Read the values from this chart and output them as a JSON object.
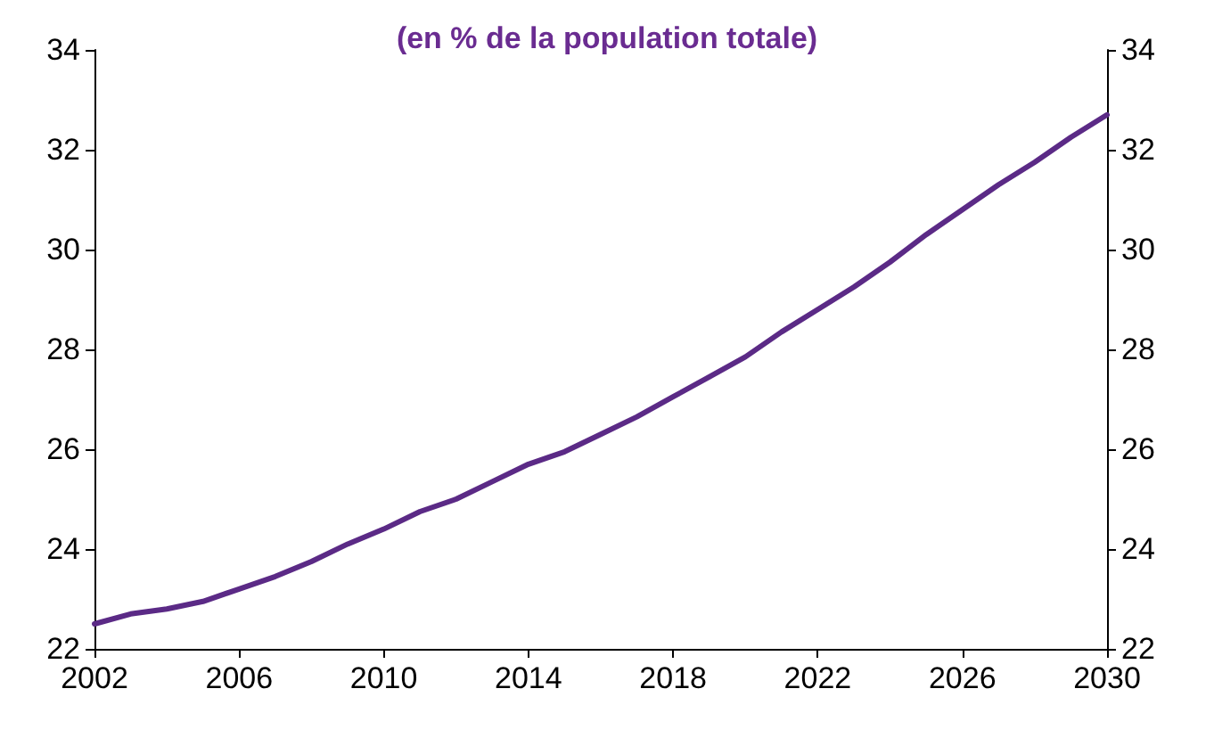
{
  "chart_data": {
    "type": "line",
    "title": "(en % de la population totale)",
    "x": [
      2002,
      2003,
      2004,
      2005,
      2006,
      2007,
      2008,
      2009,
      2010,
      2011,
      2012,
      2013,
      2014,
      2015,
      2016,
      2017,
      2018,
      2019,
      2020,
      2021,
      2022,
      2023,
      2024,
      2025,
      2026,
      2027,
      2028,
      2029,
      2030
    ],
    "series": [
      {
        "color": "#5b2a86",
        "values": [
          22.5,
          22.7,
          22.8,
          22.95,
          23.2,
          23.45,
          23.75,
          24.1,
          24.4,
          24.75,
          25.0,
          25.35,
          25.7,
          25.95,
          26.3,
          26.65,
          27.05,
          27.45,
          27.85,
          28.35,
          28.8,
          29.25,
          29.75,
          30.3,
          30.8,
          31.3,
          31.75,
          32.25,
          32.7
        ]
      }
    ],
    "xlim": [
      2002,
      2030
    ],
    "xticks": [
      2002,
      2006,
      2010,
      2014,
      2018,
      2022,
      2026,
      2030
    ],
    "ylim": [
      22,
      34
    ],
    "yticks": [
      22,
      24,
      26,
      28,
      30,
      32,
      34
    ],
    "y2lim": [
      22,
      34
    ],
    "y2ticks": [
      22,
      24,
      26,
      28,
      30,
      32,
      34
    ],
    "grid": false,
    "marker": "none",
    "line_style": "solid"
  }
}
